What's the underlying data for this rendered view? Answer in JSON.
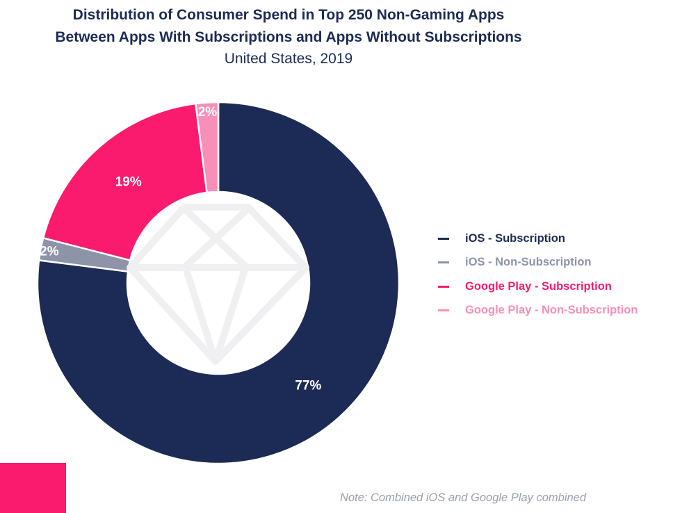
{
  "chart_data": {
    "type": "pie",
    "donut": true,
    "title": "Distribution of Consumer Spend in Top 250 Non-Gaming Apps",
    "title_line2": "Between Apps With Subscriptions and Apps Without Subscriptions",
    "subtitle": "United States, 2019",
    "legend_position": "right",
    "slices": [
      {
        "name": "iOS - Subscription",
        "value": 77,
        "label": "77%",
        "color": "#1c2b55"
      },
      {
        "name": "iOS - Non-Subscription",
        "value": 2,
        "label": "2%",
        "color": "#8e94a8"
      },
      {
        "name": "Google Play - Subscription",
        "value": 19,
        "label": "19%",
        "color": "#fa1a6e"
      },
      {
        "name": "Google Play - Non-Subscription",
        "value": 2,
        "label": "2%",
        "color": "#f78fb8"
      }
    ],
    "note": "Note: Combined iOS and Google Play combined"
  },
  "watermark_icon": "diamond-icon"
}
